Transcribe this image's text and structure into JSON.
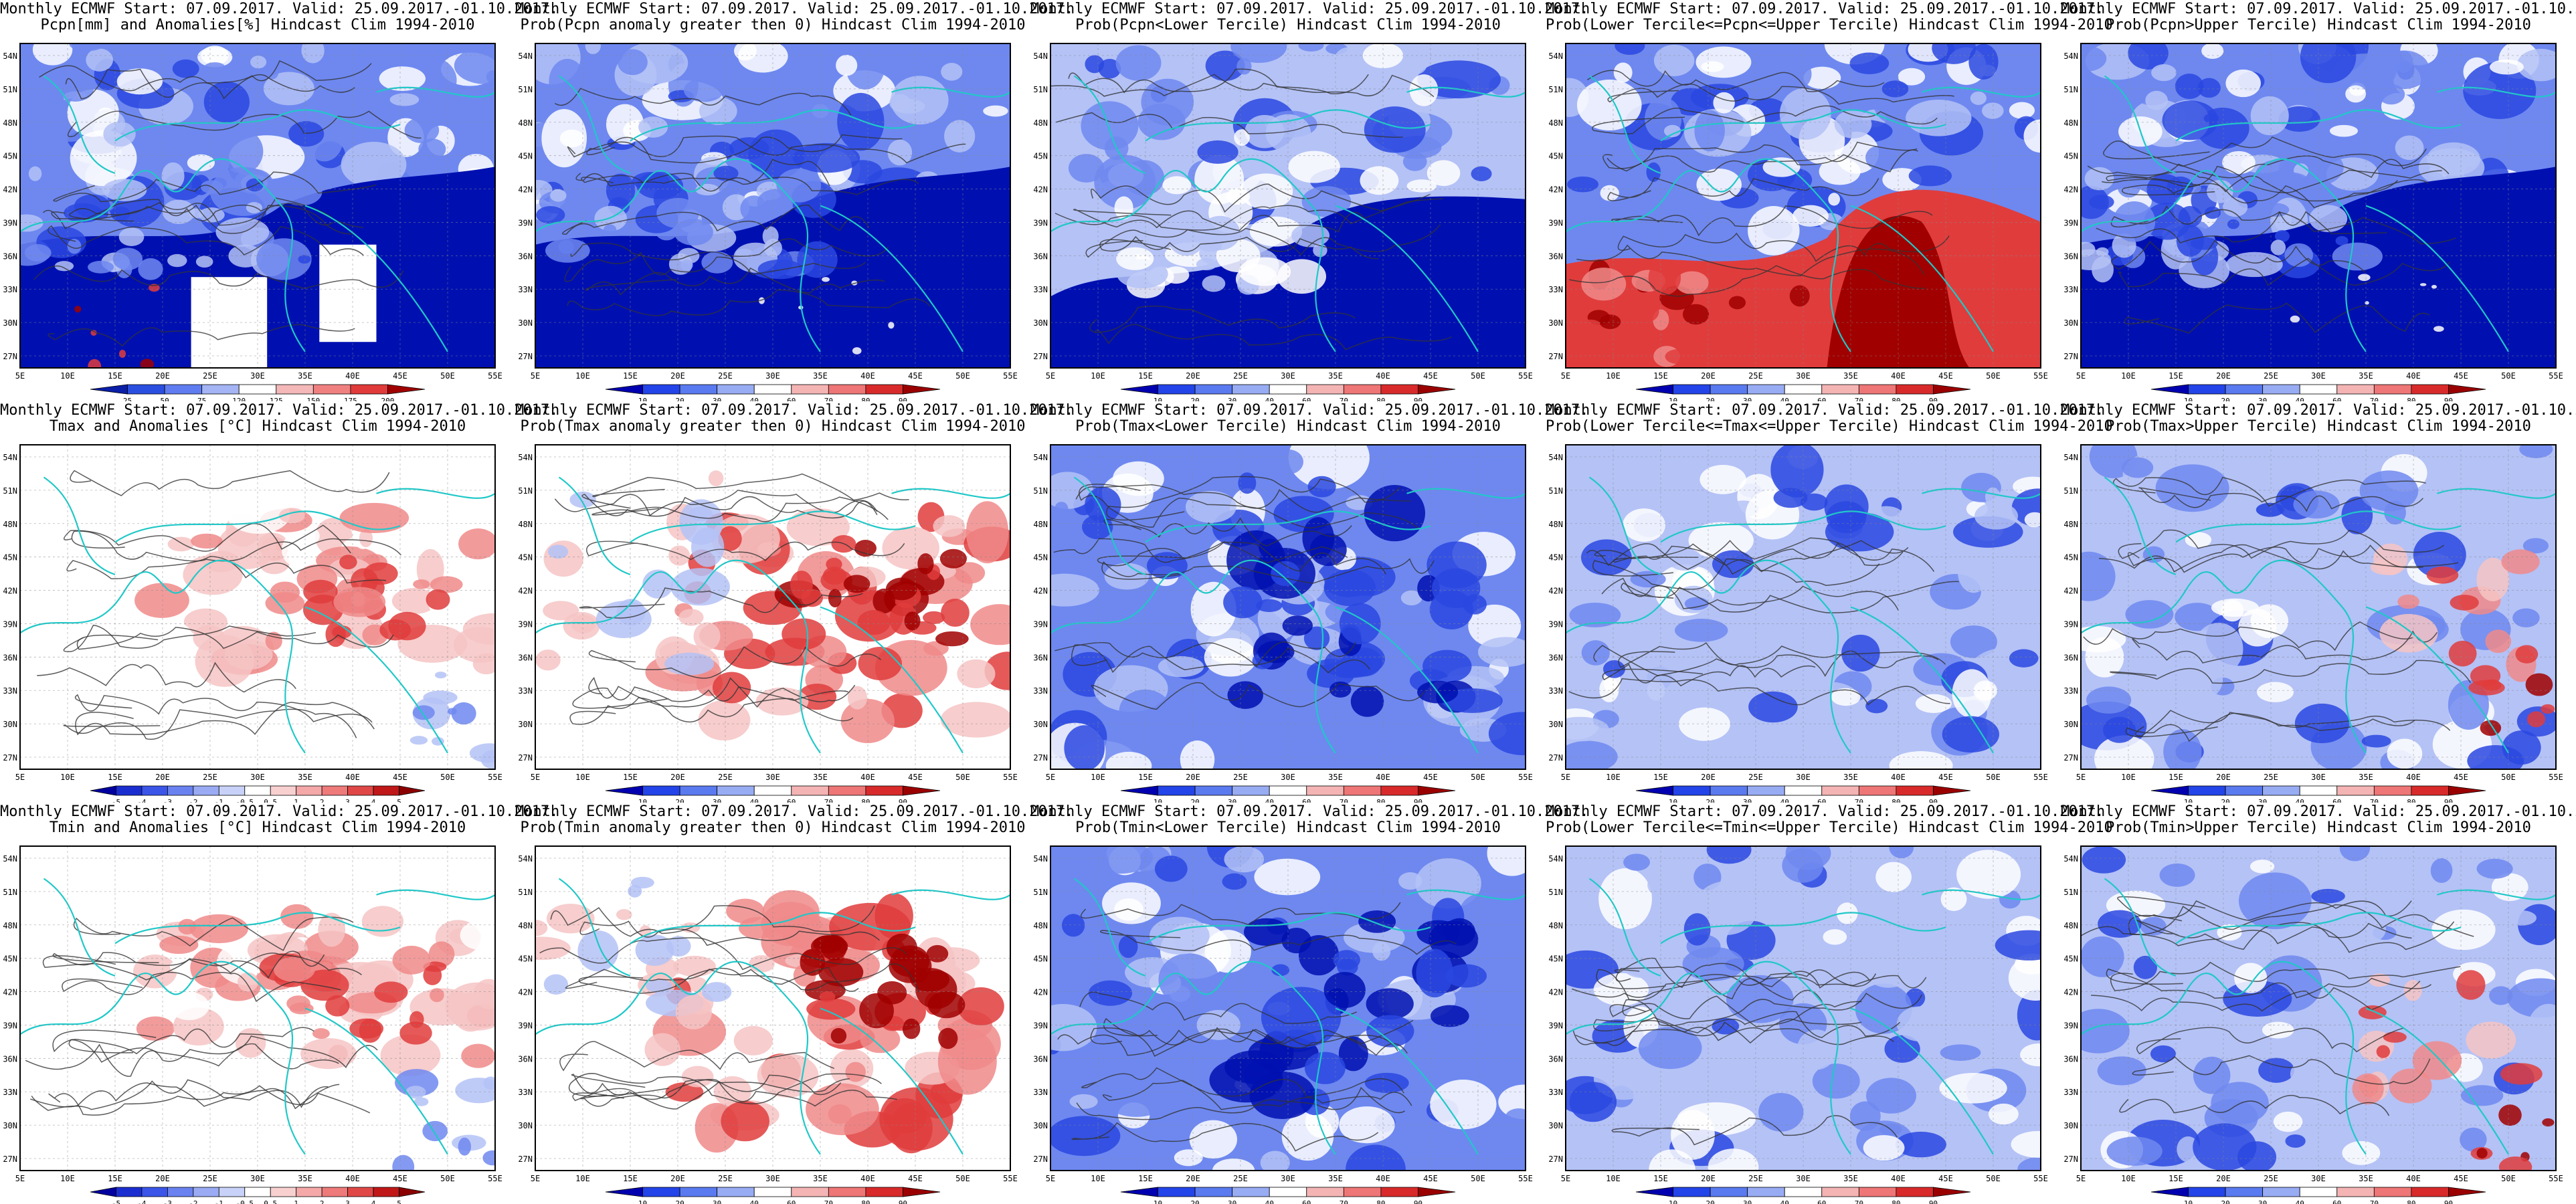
{
  "header_common": "Monthly ECMWF Start: 07.09.2017. Valid: 25.09.2017.-01.10.2017.",
  "lat_labels": [
    "54N",
    "51N",
    "48N",
    "45N",
    "42N",
    "39N",
    "36N",
    "33N",
    "30N",
    "27N"
  ],
  "lon_labels": [
    "5E",
    "10E",
    "15E",
    "20E",
    "25E",
    "30E",
    "35E",
    "40E",
    "45E",
    "50E",
    "55E"
  ],
  "colorbars": {
    "pcpn_anom": {
      "ticks": [
        "25",
        "50",
        "75",
        "120",
        "125",
        "150",
        "175",
        "200"
      ],
      "colors": [
        "#0a1ea8",
        "#2a4fe0",
        "#5f7df0",
        "#a4b4f4",
        "#ffffff",
        "#f4b8b8",
        "#f08080",
        "#e03a3a",
        "#a00000"
      ]
    },
    "temp_anom": {
      "ticks": [
        "-5",
        "-4",
        "-3",
        "-2",
        "-1",
        "-0.5",
        "0.5",
        "1",
        "2",
        "3",
        "4",
        "5"
      ],
      "colors": [
        "#0000a0",
        "#1a2ed0",
        "#3a55e8",
        "#6a82f0",
        "#9aabf4",
        "#c8d2f8",
        "#ffffff",
        "#f8d0d0",
        "#f4a8a8",
        "#ee7a7a",
        "#e04848",
        "#c01818",
        "#8a0000"
      ]
    },
    "prob": {
      "ticks": [
        "10",
        "20",
        "30",
        "40",
        "60",
        "70",
        "80",
        "90"
      ],
      "colors": [
        "#0000b0",
        "#2244e8",
        "#5a7af0",
        "#98acf4",
        "#ffffff",
        "#f4b4b4",
        "#ee7676",
        "#d82a2a",
        "#9a0000"
      ]
    }
  },
  "panels": [
    {
      "title": "Pcpn[mm] and Anomalies[%] Hindcast Clim 1994-2010",
      "style": "pcpn_anom",
      "cbar": "pcpn_anom"
    },
    {
      "title": "Prob(Pcpn anomaly greater then 0) Hindcast Clim 1994-2010",
      "style": "pcpn_low",
      "cbar": "prob"
    },
    {
      "title": "Prob(Pcpn<Lower Tercile) Hindcast Clim 1994-2010",
      "style": "pcpn_lower",
      "cbar": "prob"
    },
    {
      "title": "Prob(Lower Tercile<=Pcpn<=Upper Tercile) Hindcast Clim 1994-2010",
      "style": "pcpn_mid",
      "cbar": "prob"
    },
    {
      "title": "Prob(Pcpn>Upper Tercile) Hindcast Clim 1994-2010",
      "style": "pcpn_low",
      "cbar": "prob"
    },
    {
      "title": "Tmax and Anomalies [°C] Hindcast Clim 1994-2010",
      "style": "t_anom",
      "cbar": "temp_anom"
    },
    {
      "title": "Prob(Tmax anomaly greater then 0) Hindcast Clim 1994-2010",
      "style": "t_prob_pos",
      "cbar": "prob"
    },
    {
      "title": "Prob(Tmax<Lower Tercile) Hindcast Clim 1994-2010",
      "style": "t_blue",
      "cbar": "prob"
    },
    {
      "title": "Prob(Lower Tercile<=Tmax<=Upper Tercile) Hindcast Clim 1994-2010",
      "style": "t_mixed",
      "cbar": "prob"
    },
    {
      "title": "Prob(Tmax>Upper Tercile) Hindcast Clim 1994-2010",
      "style": "t_mixed_red",
      "cbar": "prob"
    },
    {
      "title": "Tmin and Anomalies [°C] Hindcast Clim 1994-2010",
      "style": "t_anom",
      "cbar": "temp_anom"
    },
    {
      "title": "Prob(Tmin anomaly greater then 0) Hindcast Clim 1994-2010",
      "style": "t_prob_pos",
      "cbar": "prob"
    },
    {
      "title": "Prob(Tmin<Lower Tercile) Hindcast Clim 1994-2010",
      "style": "t_blue",
      "cbar": "prob"
    },
    {
      "title": "Prob(Lower Tercile<=Tmin<=Upper Tercile) Hindcast Clim 1994-2010",
      "style": "t_mixed",
      "cbar": "prob"
    },
    {
      "title": "Prob(Tmin>Upper Tercile) Hindcast Clim 1994-2010",
      "style": "t_mixed_red",
      "cbar": "prob"
    }
  ]
}
